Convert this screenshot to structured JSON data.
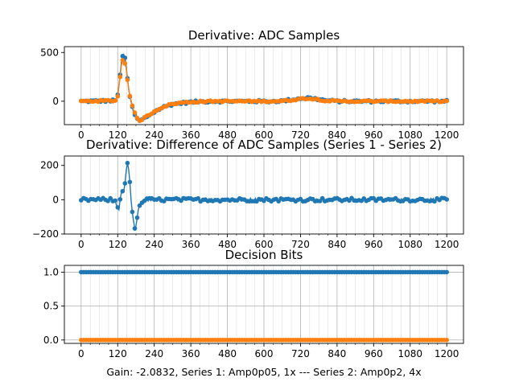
{
  "figure": {
    "caption": "Gain: -2.0832, Series 1: Amp0p05, 1x --- Series 2: Amp0p2, 4x"
  },
  "colors": {
    "series1": "#1f77b4",
    "series2": "#ff7f0e",
    "grid": "#b0b0b0"
  },
  "chart_data": [
    {
      "type": "scatter",
      "title": "Derivative: ADC Samples",
      "xlabel": "",
      "ylabel": "",
      "xlim": [
        -55,
        1255
      ],
      "ylim": [
        -240,
        560
      ],
      "xticks": [
        0,
        120,
        240,
        360,
        480,
        600,
        720,
        840,
        960,
        1080,
        1200
      ],
      "xtick_labels": [
        "0",
        "120",
        "240",
        "360",
        "480",
        "600",
        "720",
        "840",
        "960",
        "1080",
        "1200"
      ],
      "yticks": [
        0,
        500
      ],
      "ytick_labels": [
        "0",
        "500"
      ],
      "grid": "vertical",
      "series": [
        {
          "color": "#1f77b4",
          "noise": 12,
          "x": [
            0,
            100,
            112,
            120,
            128,
            133,
            138,
            142,
            147,
            152,
            158,
            165,
            172,
            180,
            190,
            200,
            220,
            245,
            270,
            300,
            340,
            380,
            440,
            500,
            560,
            620,
            660,
            690,
            720,
            745,
            770,
            800,
            840,
            900,
            1000,
            1100,
            1200
          ],
          "y": [
            0,
            5,
            10,
            60,
            280,
            430,
            490,
            470,
            380,
            230,
            80,
            -30,
            -110,
            -170,
            -200,
            -190,
            -150,
            -100,
            -60,
            -30,
            -15,
            -5,
            0,
            0,
            0,
            0,
            3,
            15,
            30,
            35,
            25,
            10,
            0,
            0,
            0,
            0,
            0
          ]
        },
        {
          "color": "#ff7f0e",
          "noise": 8,
          "x": [
            0,
            100,
            112,
            120,
            128,
            133,
            138,
            142,
            147,
            152,
            158,
            165,
            172,
            180,
            190,
            200,
            220,
            245,
            270,
            300,
            340,
            380,
            440,
            500,
            560,
            620,
            660,
            690,
            720,
            745,
            770,
            800,
            840,
            900,
            1000,
            1100,
            1200
          ],
          "y": [
            0,
            5,
            8,
            50,
            250,
            400,
            430,
            420,
            350,
            220,
            90,
            -10,
            -90,
            -160,
            -200,
            -185,
            -145,
            -95,
            -55,
            -28,
            -12,
            -4,
            0,
            0,
            0,
            0,
            3,
            12,
            25,
            30,
            22,
            8,
            0,
            0,
            0,
            0,
            0
          ]
        }
      ]
    },
    {
      "type": "scatter",
      "title": "Derivative: Difference of ADC Samples (Series 1 - Series 2)",
      "xlabel": "",
      "ylabel": "",
      "xlim": [
        -55,
        1255
      ],
      "ylim": [
        -200,
        255
      ],
      "xticks": [
        0,
        120,
        240,
        360,
        480,
        600,
        720,
        840,
        960,
        1080,
        1200
      ],
      "xtick_labels": [
        "0",
        "120",
        "240",
        "360",
        "480",
        "600",
        "720",
        "840",
        "960",
        "1080",
        "1200"
      ],
      "yticks": [
        -200,
        0,
        200
      ],
      "ytick_labels": [
        "−200",
        "0",
        "200"
      ],
      "grid": "vertical",
      "series": [
        {
          "color": "#1f77b4",
          "noise": 10,
          "x": [
            0,
            100,
            112,
            118,
            124,
            130,
            135,
            140,
            146,
            150,
            154,
            158,
            162,
            166,
            170,
            174,
            178,
            182,
            188,
            196,
            210,
            240,
            300,
            400,
            500,
            600,
            700,
            800,
            900,
            1000,
            1100,
            1200
          ],
          "y": [
            0,
            0,
            -10,
            -30,
            -60,
            30,
            60,
            50,
            120,
            230,
            210,
            140,
            50,
            -40,
            -110,
            -150,
            -170,
            -140,
            -60,
            -20,
            0,
            0,
            0,
            0,
            0,
            0,
            0,
            0,
            0,
            0,
            0,
            0
          ]
        }
      ]
    },
    {
      "type": "scatter",
      "title": "Decision Bits",
      "xlabel": "",
      "ylabel": "",
      "xlim": [
        -55,
        1255
      ],
      "ylim": [
        -0.05,
        1.1
      ],
      "xticks": [
        0,
        120,
        240,
        360,
        480,
        600,
        720,
        840,
        960,
        1080,
        1200
      ],
      "xtick_labels": [
        "0",
        "120",
        "240",
        "360",
        "480",
        "600",
        "720",
        "840",
        "960",
        "1080",
        "1200"
      ],
      "yticks": [
        0.0,
        0.5,
        1.0
      ],
      "ytick_labels": [
        "0.0",
        "0.5",
        "1.0"
      ],
      "grid": "both",
      "series": [
        {
          "color": "#1f77b4",
          "noise": 0,
          "x": [
            0,
            1200
          ],
          "y": [
            1,
            1
          ]
        },
        {
          "color": "#ff7f0e",
          "noise": 0,
          "x": [
            0,
            1200
          ],
          "y": [
            0,
            0
          ]
        }
      ]
    }
  ]
}
